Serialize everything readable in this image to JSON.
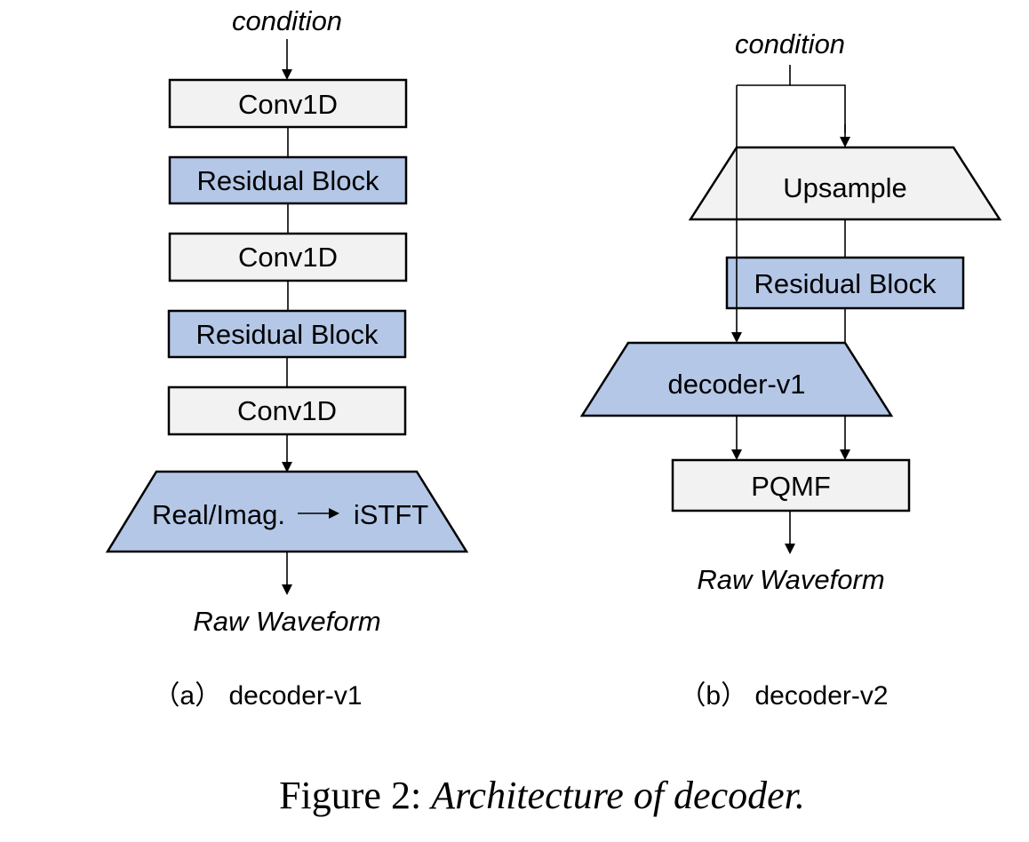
{
  "panel_a": {
    "input_label": "condition",
    "block_1": "Conv1D",
    "block_2": "Residual Block",
    "block_3": "Conv1D",
    "block_4": "Residual Block",
    "block_5": "Conv1D",
    "trapezoid_left": "Real/Imag.",
    "trapezoid_right": "iSTFT",
    "output_label": "Raw Waveform",
    "subcaption": "（a） decoder-v1"
  },
  "panel_b": {
    "input_label": "condition",
    "upsample": "Upsample",
    "residual": "Residual Block",
    "decoder": "decoder-v1",
    "pqmf": "PQMF",
    "output_label": "Raw Waveform",
    "subcaption": "（b） decoder-v2"
  },
  "caption": {
    "prefix": "Figure 2: ",
    "text": "Architecture of decoder."
  },
  "colors": {
    "grey_fill": "#f2f2f2",
    "blue_fill": "#b4c7e7",
    "stroke": "#000000"
  }
}
